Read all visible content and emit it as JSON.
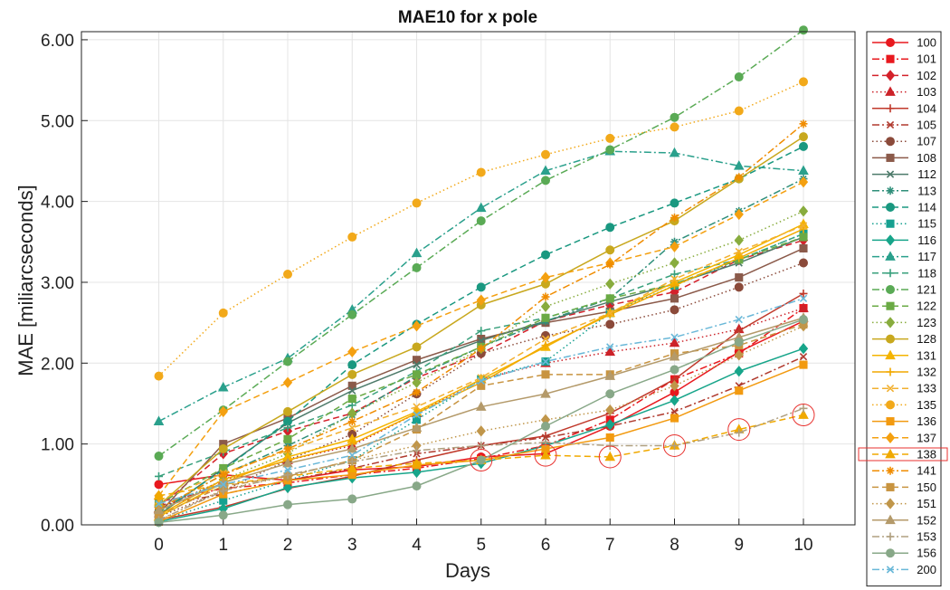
{
  "chart_data": {
    "type": "line",
    "title": "MAE10 for x pole",
    "xlabel": "Days",
    "ylabel": "MAE [miliarcseconds]",
    "x": [
      0,
      1,
      2,
      3,
      4,
      5,
      6,
      7,
      8,
      9,
      10
    ],
    "xlim": [
      -1.2,
      10.8
    ],
    "ylim": [
      0,
      6.1
    ],
    "yticks": [
      "0.00",
      "1.00",
      "2.00",
      "3.00",
      "4.00",
      "5.00",
      "6.00"
    ],
    "xticks": [
      "0",
      "1",
      "2",
      "3",
      "4",
      "5",
      "6",
      "7",
      "8",
      "9",
      "10"
    ],
    "grid": true,
    "legend_position": "outside-right",
    "highlighted_series": "138",
    "highlight_color": "#e8322f",
    "series": [
      {
        "name": "100",
        "color": "#e8191e",
        "dash": "solid",
        "marker": "circle",
        "values": [
          0.5,
          0.62,
          0.55,
          0.68,
          0.72,
          0.84,
          0.88,
          1.22,
          1.64,
          2.14,
          2.52
        ]
      },
      {
        "name": "101",
        "color": "#e8191e",
        "dash": "dashdot",
        "marker": "square",
        "values": [
          0.28,
          0.45,
          0.52,
          0.62,
          0.7,
          0.82,
          0.98,
          1.3,
          1.8,
          2.12,
          2.68
        ]
      },
      {
        "name": "102",
        "color": "#d4212a",
        "dash": "dashed",
        "marker": "diamond",
        "values": [
          0.22,
          0.88,
          1.16,
          1.38,
          1.82,
          2.12,
          2.52,
          2.72,
          2.88,
          3.28,
          3.52
        ]
      },
      {
        "name": "103",
        "color": "#cc2229",
        "dash": "dotted",
        "marker": "triangle",
        "values": [
          0.2,
          0.55,
          0.8,
          0.98,
          1.38,
          1.8,
          2.0,
          2.14,
          2.25,
          2.42,
          2.68
        ]
      },
      {
        "name": "104",
        "color": "#c0392b",
        "dash": "solid",
        "marker": "plus",
        "values": [
          0.06,
          0.22,
          0.45,
          0.6,
          0.8,
          0.98,
          1.1,
          1.38,
          1.8,
          2.4,
          2.86
        ]
      },
      {
        "name": "105",
        "color": "#b03a2e",
        "dash": "dashdot",
        "marker": "x",
        "values": [
          0.24,
          0.38,
          0.55,
          0.7,
          0.88,
          0.98,
          1.08,
          1.22,
          1.4,
          1.72,
          2.08
        ]
      },
      {
        "name": "107",
        "color": "#8b4a3a",
        "dash": "dotted",
        "marker": "circle",
        "values": [
          0.1,
          0.42,
          0.8,
          1.12,
          1.62,
          2.12,
          2.34,
          2.48,
          2.66,
          2.94,
          3.24
        ]
      },
      {
        "name": "108",
        "color": "#8b5a4a",
        "dash": "solid",
        "marker": "square",
        "values": [
          0.14,
          1.0,
          1.32,
          1.72,
          2.04,
          2.3,
          2.5,
          2.64,
          2.8,
          3.06,
          3.42
        ]
      },
      {
        "name": "112",
        "color": "#4d7a6a",
        "dash": "solid",
        "marker": "x",
        "values": [
          0.12,
          0.7,
          1.26,
          1.66,
          1.98,
          2.28,
          2.52,
          2.76,
          2.98,
          3.24,
          3.56
        ]
      },
      {
        "name": "113",
        "color": "#2f8f7a",
        "dash": "dashdot",
        "marker": "asterisk",
        "values": [
          0.2,
          0.62,
          0.98,
          1.36,
          1.84,
          2.2,
          2.52,
          2.8,
          3.5,
          3.88,
          4.28
        ]
      },
      {
        "name": "114",
        "color": "#1a9880",
        "dash": "dashed",
        "marker": "circle",
        "values": [
          0.15,
          0.68,
          1.28,
          1.98,
          2.48,
          2.94,
          3.34,
          3.68,
          3.98,
          4.28,
          4.68
        ]
      },
      {
        "name": "115",
        "color": "#16a090",
        "dash": "dotted",
        "marker": "square",
        "values": [
          0.05,
          0.3,
          0.55,
          0.8,
          1.3,
          1.8,
          2.02,
          2.62,
          2.96,
          3.28,
          3.6
        ]
      },
      {
        "name": "116",
        "color": "#17a58a",
        "dash": "solid",
        "marker": "diamond",
        "values": [
          0.04,
          0.2,
          0.46,
          0.58,
          0.65,
          0.76,
          0.98,
          1.24,
          1.54,
          1.9,
          2.18
        ]
      },
      {
        "name": "117",
        "color": "#2aa08c",
        "dash": "dashdot",
        "marker": "triangle",
        "values": [
          1.28,
          1.7,
          2.06,
          2.66,
          3.36,
          3.92,
          4.38,
          4.62,
          4.6,
          4.44,
          4.38
        ]
      },
      {
        "name": "118",
        "color": "#38a07c",
        "dash": "dashed",
        "marker": "plus",
        "values": [
          0.6,
          0.9,
          1.2,
          1.48,
          1.9,
          2.4,
          2.56,
          2.8,
          3.1,
          3.28,
          3.6
        ]
      },
      {
        "name": "121",
        "color": "#5aaa55",
        "dash": "dashdot",
        "marker": "circle",
        "values": [
          0.85,
          1.42,
          2.02,
          2.6,
          3.18,
          3.76,
          4.26,
          4.64,
          5.04,
          5.54,
          6.12
        ]
      },
      {
        "name": "122",
        "color": "#6aaa45",
        "dash": "dashed",
        "marker": "square",
        "values": [
          0.26,
          0.7,
          1.06,
          1.56,
          1.86,
          2.2,
          2.56,
          2.8,
          2.98,
          3.28,
          3.56
        ]
      },
      {
        "name": "123",
        "color": "#88ac3e",
        "dash": "dotted",
        "marker": "diamond",
        "values": [
          0.16,
          0.56,
          0.88,
          1.38,
          1.76,
          2.18,
          2.7,
          2.98,
          3.24,
          3.52,
          3.88
        ]
      },
      {
        "name": "128",
        "color": "#c8a81e",
        "dash": "solid",
        "marker": "circle",
        "values": [
          0.24,
          0.94,
          1.4,
          1.86,
          2.2,
          2.72,
          2.98,
          3.4,
          3.76,
          4.28,
          4.8
        ]
      },
      {
        "name": "131",
        "color": "#f4b400",
        "dash": "solid",
        "marker": "triangle",
        "values": [
          0.1,
          0.52,
          0.84,
          1.06,
          1.4,
          1.8,
          2.2,
          2.62,
          3.0,
          3.34,
          3.72
        ]
      },
      {
        "name": "132",
        "color": "#f2a900",
        "dash": "solid",
        "marker": "plus",
        "values": [
          0.12,
          0.56,
          0.8,
          1.0,
          1.38,
          1.76,
          2.22,
          2.6,
          2.96,
          3.3,
          3.66
        ]
      },
      {
        "name": "133",
        "color": "#f2b030",
        "dash": "dashed",
        "marker": "x",
        "values": [
          0.3,
          0.64,
          0.92,
          1.2,
          1.46,
          1.82,
          2.3,
          2.62,
          3.04,
          3.38,
          3.7
        ]
      },
      {
        "name": "135",
        "color": "#f2a91a",
        "dash": "dotted",
        "marker": "circle",
        "values": [
          1.84,
          2.62,
          3.1,
          3.56,
          3.98,
          4.36,
          4.58,
          4.78,
          4.92,
          5.12,
          5.48
        ]
      },
      {
        "name": "136",
        "color": "#f29a10",
        "dash": "solid",
        "marker": "square",
        "values": [
          0.04,
          0.38,
          0.55,
          0.62,
          0.74,
          0.8,
          0.94,
          1.08,
          1.32,
          1.66,
          1.98
        ]
      },
      {
        "name": "137",
        "color": "#f4a010",
        "dash": "dashed",
        "marker": "diamond",
        "values": [
          0.36,
          1.4,
          1.76,
          2.14,
          2.46,
          2.78,
          3.06,
          3.24,
          3.44,
          3.84,
          4.24
        ]
      },
      {
        "name": "138",
        "color": "#f0a900",
        "dash": "dashed",
        "marker": "triangle",
        "values": [
          0.36,
          0.5,
          0.6,
          0.7,
          0.76,
          0.8,
          0.86,
          0.84,
          0.98,
          1.18,
          1.36
        ]
      },
      {
        "name": "141",
        "color": "#f08c00",
        "dash": "dashdot",
        "marker": "asterisk",
        "values": [
          0.2,
          0.62,
          0.94,
          1.28,
          1.64,
          2.18,
          2.82,
          3.22,
          3.8,
          4.3,
          4.96
        ]
      },
      {
        "name": "150",
        "color": "#c89440",
        "dash": "dashed",
        "marker": "square",
        "values": [
          0.12,
          0.48,
          0.6,
          0.8,
          1.18,
          1.72,
          1.86,
          1.86,
          2.12,
          2.22,
          2.48
        ]
      },
      {
        "name": "151",
        "color": "#c0964a",
        "dash": "dotted",
        "marker": "diamond",
        "values": [
          0.05,
          0.44,
          0.6,
          0.8,
          0.98,
          1.16,
          1.3,
          1.42,
          1.72,
          2.1,
          2.46
        ]
      },
      {
        "name": "152",
        "color": "#b49a6a",
        "dash": "solid",
        "marker": "triangle",
        "values": [
          0.18,
          0.52,
          0.76,
          0.94,
          1.2,
          1.46,
          1.62,
          1.84,
          2.08,
          2.32,
          2.56
        ]
      },
      {
        "name": "153",
        "color": "#b0a080",
        "dash": "dashdot",
        "marker": "plus",
        "values": [
          0.06,
          0.42,
          0.62,
          0.78,
          0.92,
          0.98,
          1.02,
          0.98,
          0.98,
          1.14,
          1.44
        ]
      },
      {
        "name": "156",
        "color": "#88a888",
        "dash": "solid",
        "marker": "circle",
        "values": [
          0.03,
          0.12,
          0.25,
          0.32,
          0.48,
          0.8,
          1.22,
          1.62,
          1.92,
          2.26,
          2.54
        ]
      },
      {
        "name": "200",
        "color": "#6ab8d8",
        "dash": "dashdot",
        "marker": "x",
        "values": [
          0.26,
          0.5,
          0.68,
          0.86,
          1.36,
          1.78,
          2.02,
          2.2,
          2.32,
          2.54,
          2.8
        ]
      }
    ]
  }
}
